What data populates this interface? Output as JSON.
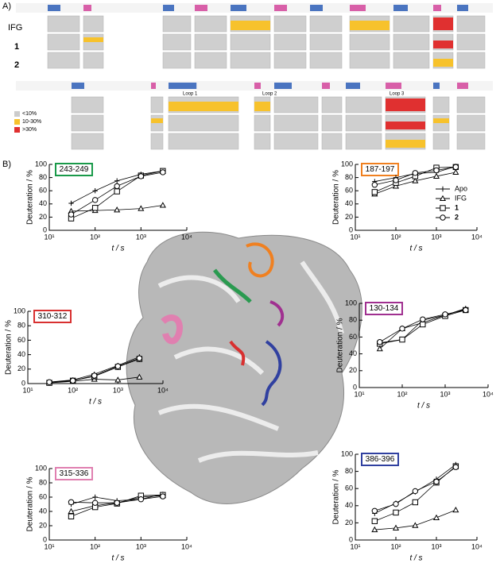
{
  "panel_a": {
    "label": "A)",
    "rows": [
      "IFG",
      "1",
      "2"
    ],
    "legend": [
      "<10%",
      "10-30%",
      ">30%"
    ],
    "loops": [
      "Loop 1",
      "Loop 2",
      "Loop 3"
    ]
  },
  "panel_b_label": "B)",
  "chart_data": [
    {
      "type": "line",
      "title": "243-249",
      "title_color": "#1a9a4a",
      "xlabel": "t / s",
      "ylabel": "Deuteration / %",
      "log_x": true,
      "x": [
        30,
        100,
        300,
        1000,
        3000
      ],
      "xlim": [
        10,
        10000
      ],
      "ylim": [
        0,
        100
      ],
      "xticks": [
        {
          "value": 10,
          "label": "10¹"
        },
        {
          "value": 100,
          "label": "10²"
        },
        {
          "value": 1000,
          "label": "10³"
        },
        {
          "value": 10000,
          "label": "10⁴"
        }
      ],
      "yticks": [
        0,
        20,
        40,
        60,
        80,
        100
      ],
      "series": [
        {
          "marker": "plus",
          "color": "#000000",
          "values": [
            41,
            60,
            75,
            85,
            90
          ]
        },
        {
          "marker": "triangle",
          "color": "#000000",
          "values": [
            29,
            30,
            31,
            33,
            38
          ]
        },
        {
          "marker": "square",
          "color": "#000000",
          "values": [
            18,
            34,
            59,
            83,
            90
          ]
        },
        {
          "marker": "circle",
          "color": "#000000",
          "values": [
            24,
            46,
            67,
            82,
            88
          ]
        }
      ]
    },
    {
      "type": "line",
      "title": "187-197",
      "title_color": "#f08020",
      "xlabel": "t / s",
      "ylabel": "Deuteration / %",
      "log_x": true,
      "x": [
        30,
        100,
        300,
        1000,
        3000
      ],
      "xlim": [
        10,
        10000
      ],
      "ylim": [
        0,
        100
      ],
      "legend": "lower right",
      "xticks": [
        {
          "value": 10,
          "label": "10¹"
        },
        {
          "value": 100,
          "label": "10²"
        },
        {
          "value": 1000,
          "label": "10³"
        },
        {
          "value": 10000,
          "label": "10⁴"
        }
      ],
      "yticks": [
        0,
        20,
        40,
        60,
        80,
        100
      ],
      "series": [
        {
          "name": "Apo",
          "marker": "plus",
          "color": "#000000",
          "values": [
            74,
            80,
            86,
            88,
            97
          ]
        },
        {
          "name": "IFG",
          "marker": "triangle",
          "color": "#000000",
          "values": [
            55,
            67,
            75,
            82,
            88
          ]
        },
        {
          "name": "1",
          "marker": "square",
          "color": "#000000",
          "values": [
            58,
            72,
            82,
            95,
            96
          ]
        },
        {
          "name": "2",
          "marker": "circle",
          "color": "#000000",
          "values": [
            69,
            76,
            87,
            91,
            96
          ]
        }
      ]
    },
    {
      "type": "line",
      "title": "310-312",
      "title_color": "#d83030",
      "xlabel": "t / s",
      "ylabel": "Deuteration / %",
      "log_x": true,
      "x": [
        30,
        100,
        300,
        1000,
        3000
      ],
      "xlim": [
        10,
        10000
      ],
      "ylim": [
        0,
        100
      ],
      "xticks": [
        {
          "value": 10,
          "label": "10¹"
        },
        {
          "value": 100,
          "label": "10²"
        },
        {
          "value": 1000,
          "label": "10³"
        },
        {
          "value": 10000,
          "label": "10⁴"
        }
      ],
      "yticks": [
        0,
        20,
        40,
        60,
        80,
        100
      ],
      "series": [
        {
          "marker": "plus",
          "color": "#000000",
          "values": [
            2,
            5,
            13,
            25,
            37
          ]
        },
        {
          "marker": "triangle",
          "color": "#000000",
          "values": [
            1,
            3,
            6,
            5,
            9
          ]
        },
        {
          "marker": "square",
          "color": "#000000",
          "values": [
            1,
            4,
            10,
            23,
            34
          ]
        },
        {
          "marker": "circle",
          "color": "#000000",
          "values": [
            2,
            4,
            11,
            24,
            35
          ]
        }
      ]
    },
    {
      "type": "line",
      "title": "130-134",
      "title_color": "#a03090",
      "xlabel": "t / s",
      "ylabel": "Deuteration / %",
      "log_x": true,
      "x": [
        30,
        100,
        300,
        1000,
        3000
      ],
      "xlim": [
        10,
        10000
      ],
      "ylim": [
        0,
        100
      ],
      "xticks": [
        {
          "value": 10,
          "label": "10¹"
        },
        {
          "value": 100,
          "label": "10²"
        },
        {
          "value": 1000,
          "label": "10³"
        },
        {
          "value": 10000,
          "label": "10⁴"
        }
      ],
      "yticks": [
        0,
        20,
        40,
        60,
        80,
        100
      ],
      "series": [
        {
          "marker": "plus",
          "color": "#000000",
          "values": [
            53,
            57,
            80,
            86,
            94
          ]
        },
        {
          "marker": "triangle",
          "color": "#000000",
          "values": [
            46,
            70,
            77,
            86,
            93
          ]
        },
        {
          "marker": "square",
          "color": "#000000",
          "values": [
            52,
            57,
            75,
            85,
            92
          ]
        },
        {
          "marker": "circle",
          "color": "#000000",
          "values": [
            54,
            70,
            81,
            87,
            92
          ]
        }
      ]
    },
    {
      "type": "line",
      "title": "315-336",
      "title_color": "#e080b0",
      "xlabel": "t / s",
      "ylabel": "Deuteration / %",
      "log_x": true,
      "x": [
        30,
        100,
        300,
        1000,
        3000
      ],
      "xlim": [
        10,
        10000
      ],
      "ylim": [
        0,
        100
      ],
      "xticks": [
        {
          "value": 10,
          "label": "10¹"
        },
        {
          "value": 100,
          "label": "10²"
        },
        {
          "value": 1000,
          "label": "10³"
        },
        {
          "value": 10000,
          "label": "10⁴"
        }
      ],
      "yticks": [
        0,
        20,
        40,
        60,
        80,
        100
      ],
      "series": [
        {
          "marker": "plus",
          "color": "#000000",
          "values": [
            50,
            60,
            55,
            57,
            64
          ]
        },
        {
          "marker": "triangle",
          "color": "#000000",
          "values": [
            40,
            48,
            52,
            60,
            62
          ]
        },
        {
          "marker": "square",
          "color": "#000000",
          "values": [
            33,
            46,
            51,
            62,
            63
          ]
        },
        {
          "marker": "circle",
          "color": "#000000",
          "values": [
            53,
            52,
            52,
            57,
            61
          ]
        }
      ]
    },
    {
      "type": "line",
      "title": "386-396",
      "title_color": "#3040a0",
      "xlabel": "t / s",
      "ylabel": "Deuteration / %",
      "log_x": true,
      "x": [
        30,
        100,
        300,
        1000,
        3000
      ],
      "xlim": [
        10,
        10000
      ],
      "ylim": [
        0,
        100
      ],
      "xticks": [
        {
          "value": 10,
          "label": "10¹"
        },
        {
          "value": 100,
          "label": "10²"
        },
        {
          "value": 1000,
          "label": "10³"
        },
        {
          "value": 10000,
          "label": "10⁴"
        }
      ],
      "yticks": [
        0,
        20,
        40,
        60,
        80,
        100
      ],
      "series": [
        {
          "marker": "plus",
          "color": "#000000",
          "values": [
            31,
            43,
            56,
            71,
            88
          ]
        },
        {
          "marker": "triangle",
          "color": "#000000",
          "values": [
            12,
            14,
            17,
            26,
            35
          ]
        },
        {
          "marker": "square",
          "color": "#000000",
          "values": [
            22,
            32,
            44,
            67,
            86
          ]
        },
        {
          "marker": "circle",
          "color": "#000000",
          "values": [
            34,
            42,
            57,
            68,
            85
          ]
        }
      ]
    }
  ]
}
